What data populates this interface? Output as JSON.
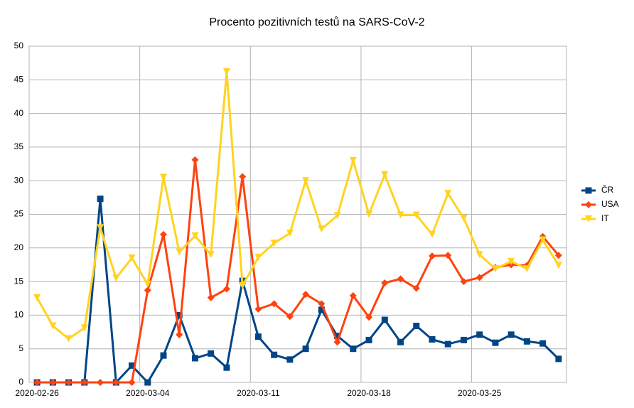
{
  "chart_data": {
    "type": "line",
    "title": "Procento pozitivních testů na SARS-CoV-2",
    "categories": [
      "2020-02-26",
      null,
      null,
      null,
      null,
      null,
      null,
      "2020-03-04",
      null,
      null,
      null,
      null,
      null,
      null,
      "2020-03-11",
      null,
      null,
      null,
      null,
      null,
      null,
      "2020-03-18",
      null,
      null,
      null,
      null,
      null,
      null,
      "2020-03-25",
      null,
      null,
      null,
      null,
      null
    ],
    "series": [
      {
        "name": "ČR",
        "color": "#004586",
        "marker": "square",
        "values": [
          0,
          0,
          0,
          0,
          27.3,
          0,
          2.5,
          0,
          4,
          10,
          3.6,
          4.3,
          2.2,
          15.1,
          6.8,
          4.1,
          3.4,
          5,
          10.8,
          6.9,
          5,
          6.3,
          9.3,
          6,
          8.4,
          6.4,
          5.7,
          6.3,
          7.1,
          5.9,
          7.1,
          6.1,
          5.8,
          3.5
        ]
      },
      {
        "name": "USA",
        "color": "#ff420e",
        "marker": "diamond",
        "values": [
          0,
          0,
          0,
          0,
          0,
          0,
          0,
          13.7,
          22,
          7.1,
          33.1,
          12.6,
          13.9,
          30.6,
          10.9,
          11.7,
          9.8,
          13.1,
          11.7,
          6,
          12.9,
          9.7,
          14.8,
          15.4,
          14,
          18.8,
          18.9,
          15,
          15.6,
          17.1,
          17.5,
          17.4,
          21.7,
          18.9
        ]
      },
      {
        "name": "IT",
        "color": "#ffd320",
        "marker": "triangle-down",
        "values": [
          12.6,
          8.4,
          6.5,
          8.1,
          23,
          15.5,
          18.5,
          14.6,
          30.5,
          19.4,
          21.8,
          19,
          46.2,
          14.4,
          18.6,
          20.7,
          22.2,
          30,
          22.8,
          24.8,
          33,
          25,
          30.9,
          24.9,
          24.9,
          22,
          28.1,
          24.4,
          19,
          16.9,
          18,
          16.9,
          21.2,
          17.4
        ]
      }
    ],
    "ylim": [
      0,
      50
    ],
    "yticks": [
      0,
      5,
      10,
      15,
      20,
      25,
      30,
      35,
      40,
      45,
      50
    ],
    "grid": true,
    "legend": "right"
  }
}
